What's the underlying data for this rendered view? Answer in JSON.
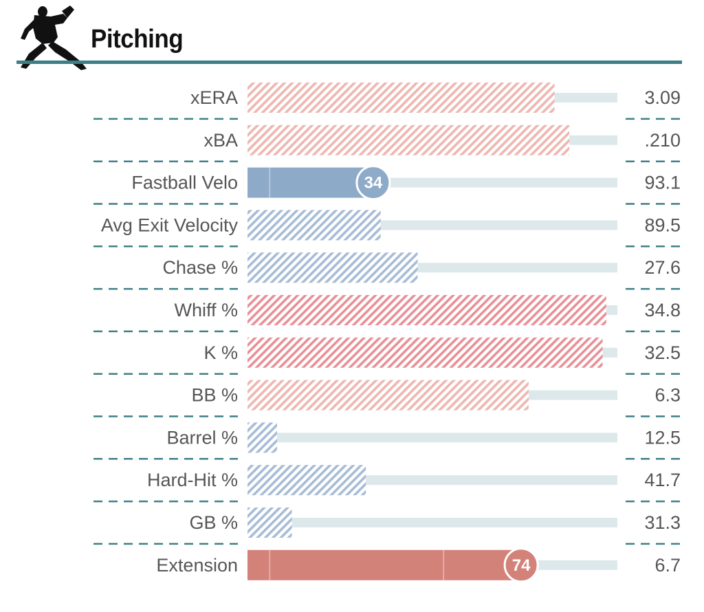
{
  "header": {
    "title": "Pitching",
    "icon": "pitcher-silhouette-icon"
  },
  "colors": {
    "rule": "#3e7f86",
    "track": "#dde8ea",
    "red_strong": "#e88f97",
    "red_soft": "#eeb6b0",
    "blue_soft": "#a6bbd6",
    "blue_solid": "#8eaac9",
    "red_solid": "#d38279"
  },
  "chart_data": {
    "type": "bar",
    "orientation": "horizontal",
    "metrics": [
      {
        "label": "xERA",
        "value": "3.09",
        "fill": 0.83,
        "tone": "red_soft",
        "style": "hatched"
      },
      {
        "label": "xBA",
        "value": ".210",
        "fill": 0.87,
        "tone": "red_soft",
        "style": "hatched"
      },
      {
        "label": "Fastball Velo",
        "value": "93.1",
        "fill": 0.34,
        "percentile": "34",
        "tone": "blue_solid",
        "style": "solid"
      },
      {
        "label": "Avg Exit Velocity",
        "value": "89.5",
        "fill": 0.36,
        "tone": "blue_soft",
        "style": "hatched"
      },
      {
        "label": "Chase %",
        "value": "27.6",
        "fill": 0.46,
        "tone": "blue_soft",
        "style": "hatched"
      },
      {
        "label": "Whiff %",
        "value": "34.8",
        "fill": 0.97,
        "tone": "red_strong",
        "style": "hatched"
      },
      {
        "label": "K %",
        "value": "32.5",
        "fill": 0.96,
        "tone": "red_strong",
        "style": "hatched"
      },
      {
        "label": "BB %",
        "value": "6.3",
        "fill": 0.76,
        "tone": "red_soft",
        "style": "hatched"
      },
      {
        "label": "Barrel %",
        "value": "12.5",
        "fill": 0.08,
        "tone": "blue_soft",
        "style": "hatched"
      },
      {
        "label": "Hard-Hit %",
        "value": "41.7",
        "fill": 0.32,
        "tone": "blue_soft",
        "style": "hatched"
      },
      {
        "label": "GB %",
        "value": "31.3",
        "fill": 0.12,
        "tone": "blue_soft",
        "style": "hatched"
      },
      {
        "label": "Extension",
        "value": "6.7",
        "fill": 0.74,
        "percentile": "74",
        "tone": "red_solid",
        "style": "solid"
      }
    ],
    "fill_range": [
      0,
      1
    ]
  }
}
